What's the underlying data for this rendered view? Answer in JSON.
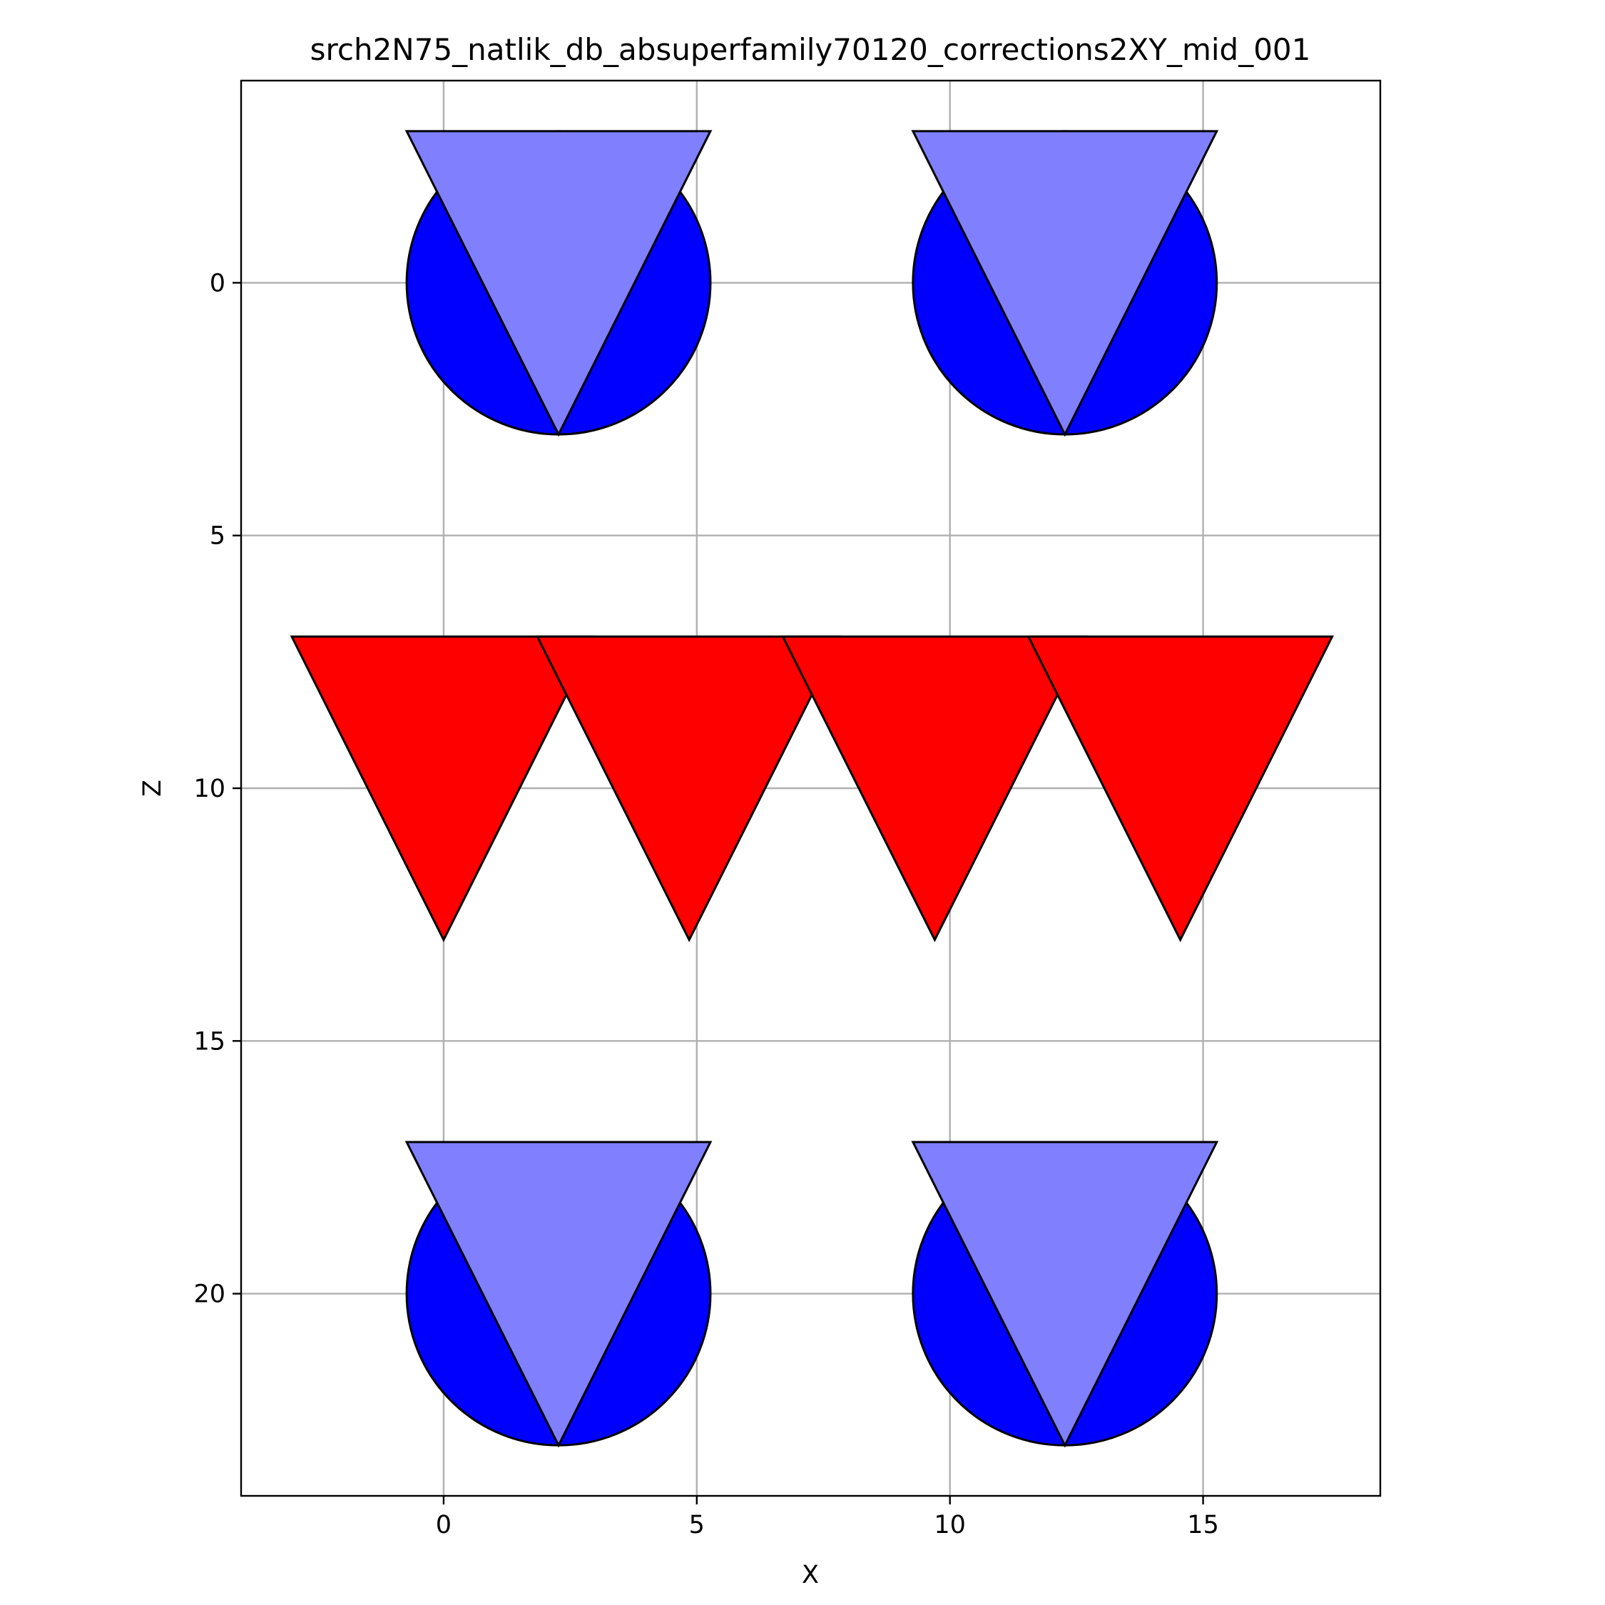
{
  "chart_data": {
    "type": "scatter",
    "title": "srch2N75_natlik_db_absuperfamily70120_corrections2XY_mid_001",
    "xlabel": "X",
    "ylabel": "Z",
    "xlim": [
      -4.0,
      18.5
    ],
    "ylim": [
      24.0,
      -4.0
    ],
    "y_inverted": true,
    "grid": true,
    "xticks": [
      0,
      5,
      10,
      15
    ],
    "yticks": [
      0,
      5,
      10,
      15,
      20
    ],
    "series": [
      {
        "marker": "circle",
        "color": "#0000ff",
        "radius": 3.0,
        "points": [
          {
            "x": 2.27,
            "y": 0
          },
          {
            "x": 12.27,
            "y": 0
          },
          {
            "x": 2.27,
            "y": 20
          },
          {
            "x": 12.27,
            "y": 20
          }
        ]
      },
      {
        "marker": "triangle-down",
        "color": "#8080ff",
        "size": 3.0,
        "points": [
          {
            "x": 2.27,
            "y": 0
          },
          {
            "x": 12.27,
            "y": 0
          },
          {
            "x": 2.27,
            "y": 20
          },
          {
            "x": 12.27,
            "y": 20
          }
        ]
      },
      {
        "marker": "triangle-down",
        "color": "#ff0000",
        "size": 3.0,
        "points": [
          {
            "x": 0.0,
            "y": 10
          },
          {
            "x": 4.85,
            "y": 10
          },
          {
            "x": 9.7,
            "y": 10
          },
          {
            "x": 14.55,
            "y": 10
          }
        ]
      }
    ]
  }
}
